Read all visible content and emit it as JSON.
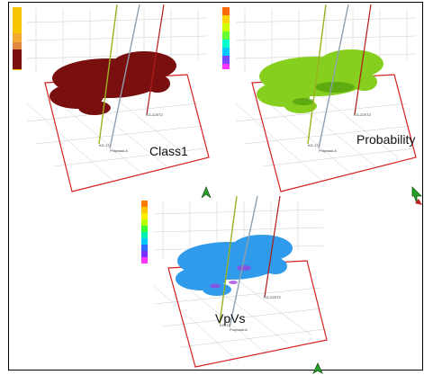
{
  "panels": {
    "class1": {
      "label": "Class1",
      "cloud_color": "#7a0f0f",
      "legend_colors": [
        "#f6c400",
        "#f4d000",
        "#f8de5a",
        "#f2a22a",
        "#7a1010",
        "#7a1010"
      ]
    },
    "probability": {
      "label": "Probability",
      "cloud_color": "#86cf1e",
      "legend_colors": [
        "#ff6a00",
        "#ffd400",
        "#cfff00",
        "#66ff33",
        "#00ffcc",
        "#00c8ff",
        "#7b44ff",
        "#ff33ff"
      ]
    },
    "vpvs": {
      "label": "VpVs",
      "cloud_color": "#2f9bea",
      "legend_colors": [
        "#ff7a00",
        "#ffc400",
        "#ffee00",
        "#b8ff00",
        "#38ff38",
        "#00f0b0",
        "#00c8ff",
        "#2f6bff",
        "#7b2cff",
        "#ff33ff"
      ]
    }
  },
  "wells": {
    "a": "KG-17",
    "b": "Proposal-A",
    "c": "KG-22ST2"
  },
  "colors": {
    "box_outline": "#d62020",
    "grid_line": "#c9c9c9",
    "arrow_green": "#28a028"
  }
}
